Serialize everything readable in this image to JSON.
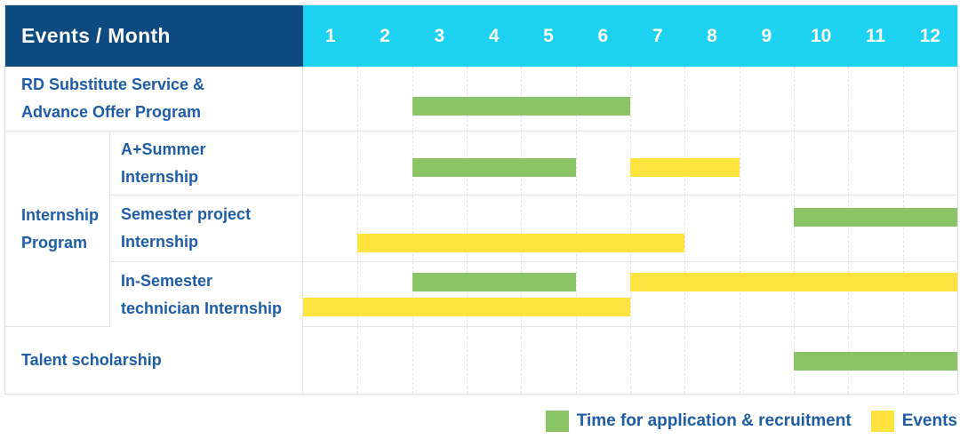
{
  "header": {
    "corner_label": "Events / Month",
    "months": [
      "1",
      "2",
      "3",
      "4",
      "5",
      "6",
      "7",
      "8",
      "9",
      "10",
      "11",
      "12"
    ]
  },
  "colors": {
    "header_bg": "#0D4A80",
    "months_bg": "#1CD2F0",
    "application": "#8AC466",
    "event": "#FFE33F",
    "label_text": "#1D5DA8"
  },
  "legend": {
    "items": [
      {
        "key": "application",
        "label": "Time for application & recruitment",
        "color": "#8AC466"
      },
      {
        "key": "event",
        "label": "Events",
        "color": "#FFE33F"
      }
    ]
  },
  "chart_data": {
    "type": "bar",
    "variant": "gantt-schedule",
    "title": "Events / Month",
    "xlabel": "Month",
    "x_ticks": [
      1,
      2,
      3,
      4,
      5,
      6,
      7,
      8,
      9,
      10,
      11,
      12
    ],
    "x_range": [
      1,
      12
    ],
    "grid": true,
    "legend_position": "bottom-right",
    "series_meaning": {
      "application": "Time for application & recruitment",
      "event": "Events"
    },
    "rows": [
      {
        "group": "",
        "label": "RD Substitute Service &\nAdvance Offer Program",
        "bars": [
          {
            "series": "application",
            "start_month": 3,
            "end_month": 6,
            "lane": 0
          }
        ]
      },
      {
        "group": "Internship Program",
        "label": "A+Summer\nInternship",
        "bars": [
          {
            "series": "application",
            "start_month": 3,
            "end_month": 5,
            "lane": 0
          },
          {
            "series": "event",
            "start_month": 7,
            "end_month": 8,
            "lane": 0
          }
        ]
      },
      {
        "group": "Internship Program",
        "label": "Semester project\nInternship",
        "bars": [
          {
            "series": "application",
            "start_month": 10,
            "end_month": 12,
            "lane": 0
          },
          {
            "series": "event",
            "start_month": 2,
            "end_month": 7,
            "lane": 1
          }
        ]
      },
      {
        "group": "Internship Program",
        "label": "In-Semester\ntechnician Internship",
        "bars": [
          {
            "series": "application",
            "start_month": 3,
            "end_month": 5,
            "lane": 0
          },
          {
            "series": "event",
            "start_month": 7,
            "end_month": 12,
            "lane": 0
          },
          {
            "series": "event",
            "start_month": 1,
            "end_month": 6,
            "lane": 1
          }
        ]
      },
      {
        "group": "",
        "label": "Talent scholarship",
        "bars": [
          {
            "series": "application",
            "start_month": 10,
            "end_month": 12,
            "lane": 0
          }
        ]
      }
    ],
    "group_label": "Internship\nProgram"
  }
}
